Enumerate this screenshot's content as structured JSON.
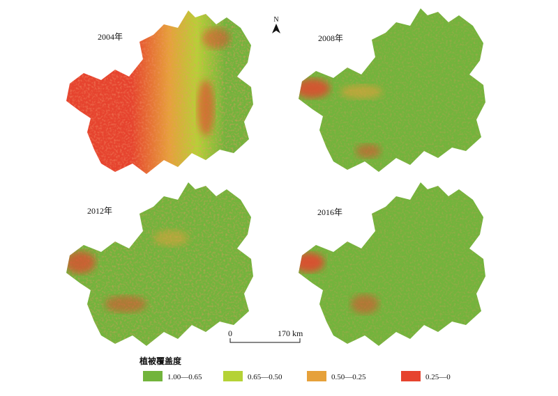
{
  "maps": [
    {
      "label": "2004年"
    },
    {
      "label": "2008年"
    },
    {
      "label": "2012年"
    },
    {
      "label": "2016年"
    }
  ],
  "north": "N",
  "scale": {
    "start": "0",
    "end": "170 km"
  },
  "legend": {
    "title": "植被覆盖度",
    "items": [
      {
        "label": "1.00—0.65",
        "color": "#72b43c"
      },
      {
        "label": "0.65—0.50",
        "color": "#b5d236"
      },
      {
        "label": "0.50—0.25",
        "color": "#e6a13a"
      },
      {
        "label": "0.25—0",
        "color": "#e6432e"
      }
    ]
  }
}
